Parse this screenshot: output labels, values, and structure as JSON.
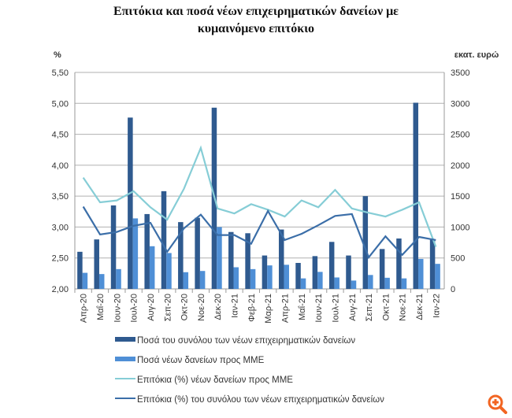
{
  "chart_data": {
    "type": "bar+line",
    "title_line1": "Επιτόκια και ποσά νέων επιχειρηματικών δανείων με",
    "title_line2": "κυμαινόμενο επιτόκιο",
    "ylabel_left": "%",
    "ylabel_right": "εκατ. ευρώ",
    "ylim_left": [
      2.0,
      5.5
    ],
    "ylim_right": [
      0,
      3500
    ],
    "yticks_left": [
      "2,00",
      "2,50",
      "3,00",
      "3,50",
      "4,00",
      "4,50",
      "5,00",
      "5,50"
    ],
    "yticks_right": [
      "0",
      "500",
      "1000",
      "1500",
      "2000",
      "2500",
      "3000",
      "3500"
    ],
    "grid": true,
    "legend_position": "bottom",
    "categories": [
      "Απρ-20",
      "Μαΐ-20",
      "Ιουν-20",
      "Ιουλ-20",
      "Αυγ-20",
      "Σεπ-20",
      "Οκτ-20",
      "Νοε-20",
      "Δεκ-20",
      "Ιαν-21",
      "Φεβ-21",
      "Μαρ-21",
      "Απρ-21",
      "Μαΐ-21",
      "Ιουν-21",
      "Ιουλ-21",
      "Αυγ-21",
      "Σεπ-21",
      "Οκτ-21",
      "Νοε-21",
      "Δεκ-21",
      "Ιαν-22"
    ],
    "series": [
      {
        "name": "Ποσά του συνόλου των νέων επιχειρηματικών δανείων",
        "type": "bar",
        "axis": "right",
        "color": "#2f5a8f",
        "values": [
          600,
          800,
          1350,
          2770,
          1210,
          1580,
          1080,
          1150,
          2930,
          920,
          900,
          540,
          960,
          420,
          530,
          760,
          540,
          1500,
          645,
          815,
          3010,
          800
        ]
      },
      {
        "name": "Ποσά νέων δανείων προς ΜΜΕ",
        "type": "bar",
        "axis": "right",
        "color": "#4f8fd6",
        "values": [
          260,
          240,
          320,
          1140,
          690,
          580,
          270,
          290,
          1000,
          350,
          320,
          380,
          390,
          170,
          275,
          185,
          135,
          225,
          180,
          170,
          485,
          405
        ]
      },
      {
        "name": "Επιτόκια (%) νέων δανείων προς ΜΜΕ",
        "type": "line",
        "axis": "left",
        "color": "#86cdd6",
        "values": [
          3.8,
          3.4,
          3.43,
          3.58,
          3.32,
          3.12,
          3.62,
          4.28,
          3.3,
          3.22,
          3.37,
          3.28,
          3.17,
          3.43,
          3.32,
          3.6,
          3.3,
          3.23,
          3.17,
          3.28,
          3.4,
          2.68
        ]
      },
      {
        "name": "Επιτόκια (%) του συνόλου των νέων επιχειρηματικών δανείων",
        "type": "line",
        "axis": "left",
        "color": "#3b6ea8",
        "values": [
          3.33,
          2.88,
          2.92,
          3.02,
          3.07,
          2.6,
          2.98,
          3.2,
          2.87,
          2.87,
          2.73,
          3.26,
          2.79,
          2.89,
          3.03,
          3.18,
          3.21,
          2.51,
          2.85,
          2.55,
          2.84,
          2.79
        ]
      }
    ]
  },
  "zoom_icon": {
    "icon": "zoom-in-icon",
    "color": "#f26522"
  }
}
